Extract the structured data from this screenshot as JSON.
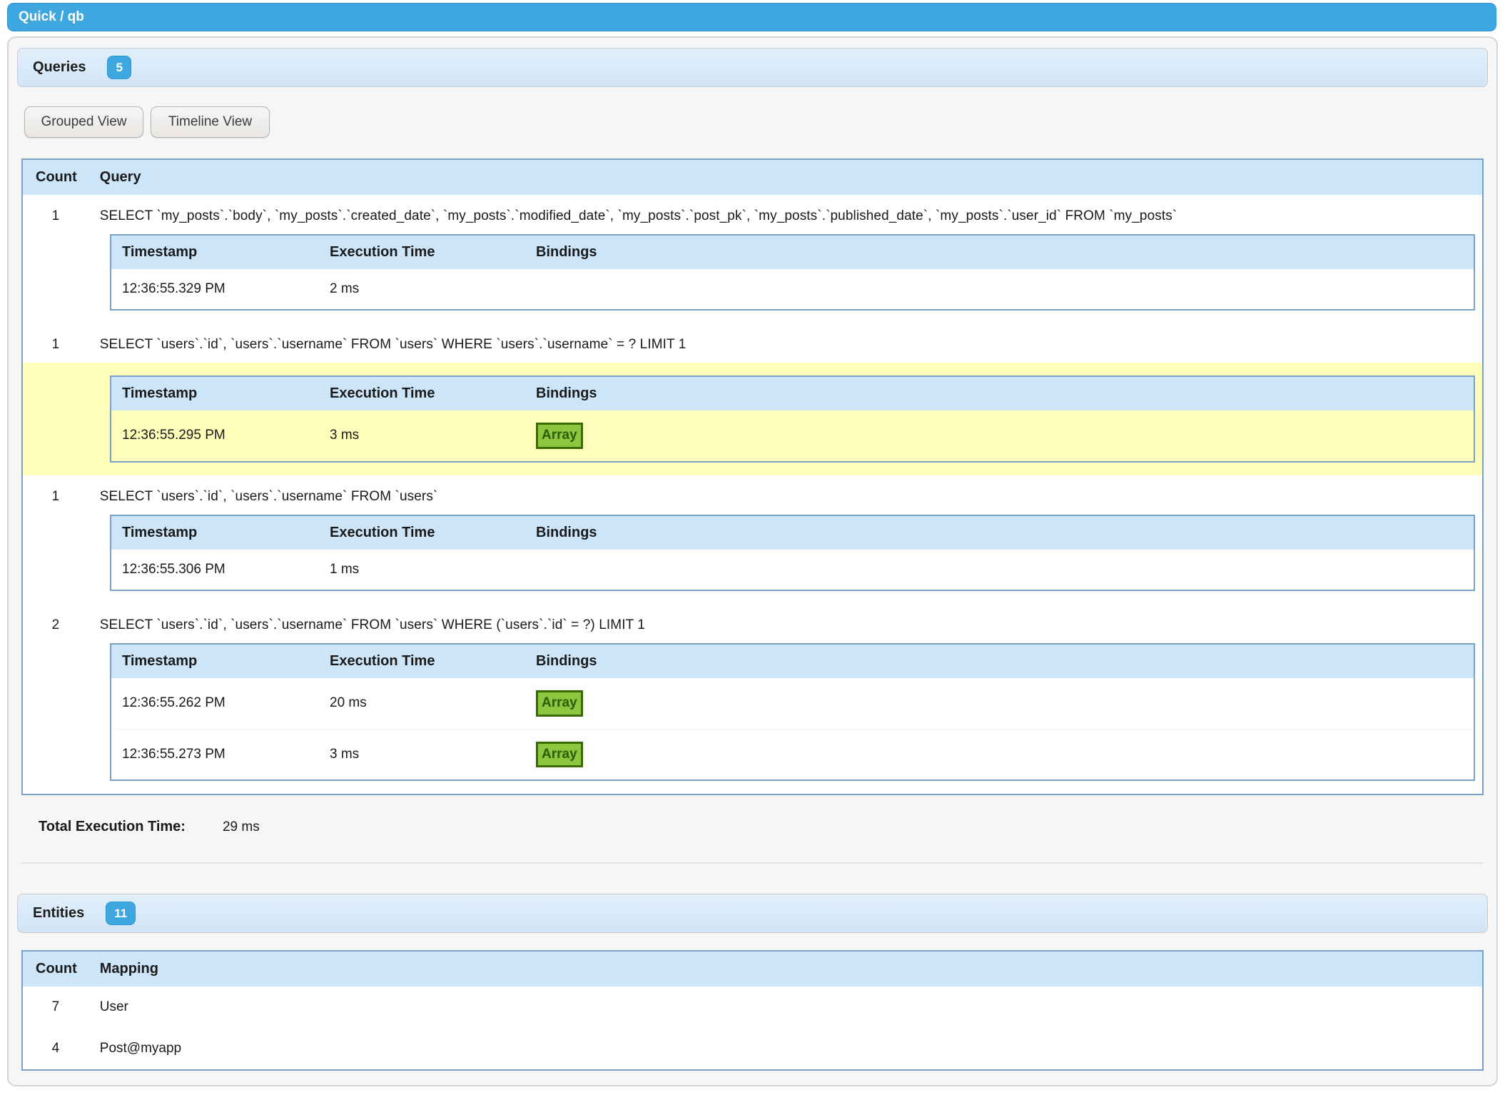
{
  "titlebar": {
    "title": "Quick / qb"
  },
  "queries": {
    "title": "Queries",
    "badge": "5",
    "buttons": {
      "grouped": "Grouped View",
      "timeline": "Timeline View"
    },
    "headers": {
      "count": "Count",
      "query": "Query"
    },
    "inner_headers": {
      "timestamp": "Timestamp",
      "execution_time": "Execution Time",
      "bindings": "Bindings"
    },
    "groups": [
      {
        "count": "1",
        "query": "SELECT `my_posts`.`body`, `my_posts`.`created_date`, `my_posts`.`modified_date`, `my_posts`.`post_pk`, `my_posts`.`published_date`, `my_posts`.`user_id` FROM `my_posts`",
        "highlight": false,
        "rows": [
          {
            "timestamp": "12:36:55.329 PM",
            "execution_time": "2 ms",
            "bindings": ""
          }
        ]
      },
      {
        "count": "1",
        "query": "SELECT `users`.`id`, `users`.`username` FROM `users` WHERE `users`.`username` = ? LIMIT 1",
        "highlight": true,
        "rows": [
          {
            "timestamp": "12:36:55.295 PM",
            "execution_time": "3 ms",
            "bindings": "Array"
          }
        ]
      },
      {
        "count": "1",
        "query": "SELECT `users`.`id`, `users`.`username` FROM `users`",
        "highlight": false,
        "rows": [
          {
            "timestamp": "12:36:55.306 PM",
            "execution_time": "1 ms",
            "bindings": ""
          }
        ]
      },
      {
        "count": "2",
        "query": "SELECT `users`.`id`, `users`.`username` FROM `users` WHERE (`users`.`id` = ?) LIMIT 1",
        "highlight": false,
        "rows": [
          {
            "timestamp": "12:36:55.262 PM",
            "execution_time": "20 ms",
            "bindings": "Array"
          },
          {
            "timestamp": "12:36:55.273 PM",
            "execution_time": "3 ms",
            "bindings": "Array"
          }
        ]
      }
    ],
    "total_label": "Total Execution Time:",
    "total_value": "29 ms"
  },
  "entities": {
    "title": "Entities",
    "badge": "11",
    "headers": {
      "count": "Count",
      "mapping": "Mapping"
    },
    "rows": [
      {
        "count": "7",
        "mapping": "User"
      },
      {
        "count": "4",
        "mapping": "Post@myapp"
      }
    ]
  },
  "colors": {
    "accent_blue": "#3ea7e0",
    "accent_blue_border": "#2e97d1",
    "section_header_bg": "#d8e9f8",
    "table_border": "#7aa2c9",
    "table_header_bg": "#cde5f9",
    "highlight_yellow": "#ffffbb",
    "array_button_bg": "#8cc63e",
    "array_button_border": "#3a6a02",
    "panel_bg": "#f6f6f6",
    "panel_border": "#d4d4d4"
  }
}
